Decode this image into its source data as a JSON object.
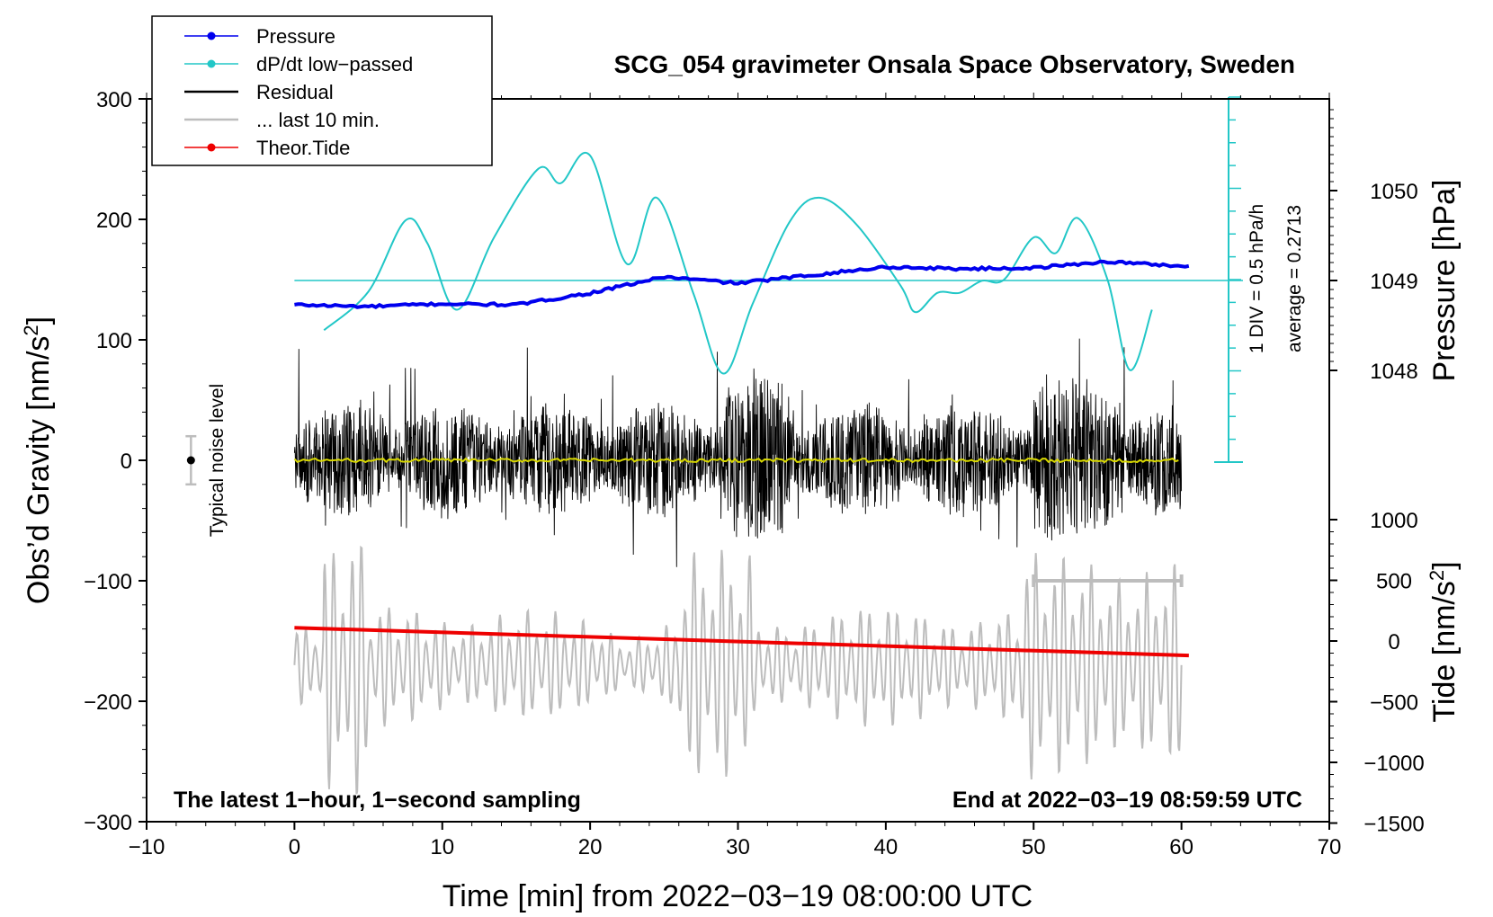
{
  "chart_data": {
    "type": "line",
    "title": "SCG_054 gravimeter Onsala Space Observatory, Sweden",
    "xlabel": "Time [min] from 2022−03−19 08:00:00 UTC",
    "ylabel_left": "Obs’d Gravity [nm/s²]",
    "ylabel_left_base": "Obs’d Gravity [nm/s",
    "ylabel_right_pressure": "Pressure [hPa]",
    "ylabel_right_tide": "Tide [nm/s²]",
    "ylabel_right_tide_base": "Tide [nm/s",
    "sup2": "2",
    "close_bracket": "]",
    "xlim": [
      -10,
      70
    ],
    "ylim_left": [
      -300,
      300
    ],
    "x_ticks": [
      "−10",
      "0",
      "10",
      "20",
      "30",
      "40",
      "50",
      "60",
      "70"
    ],
    "x_tick_values": [
      -10,
      0,
      10,
      20,
      30,
      40,
      50,
      60,
      70
    ],
    "y_ticks_left": [
      "300",
      "200",
      "100",
      "0",
      "−100",
      "−200",
      "−300"
    ],
    "y_tick_values_left": [
      300,
      200,
      100,
      0,
      -100,
      -200,
      -300
    ],
    "pressure_ticks": [
      "1050",
      "1049",
      "1048"
    ],
    "pressure_tick_values": [
      1050,
      1049,
      1048
    ],
    "tide_ticks": [
      "1000",
      "500",
      "0",
      "−500",
      "−1000",
      "−1500"
    ],
    "tide_tick_values": [
      1000,
      500,
      0,
      -500,
      -1000,
      -1500
    ],
    "legend": [
      {
        "label": "Pressure",
        "color": "#0000ee",
        "marker": true
      },
      {
        "label": "dP/dt low−passed",
        "color": "#22c7c7",
        "marker": true
      },
      {
        "label": "Residual",
        "color": "#000000",
        "marker": false
      },
      {
        "label": "... last 10 min.",
        "color": "#bdbdbd",
        "marker": false
      },
      {
        "label": "Theor.Tide",
        "color": "#ee0000",
        "marker": true
      }
    ],
    "annotations": {
      "bottom_left": "The latest 1−hour, 1−second sampling",
      "bottom_right": "End at 2022−03−19 08:59:59 UTC",
      "div_label": "1 DIV = 0.5 hPa/h",
      "average_label": "average = 0.2713",
      "noise_label": "Typical noise level"
    },
    "noise_level_range": [
      -20,
      20
    ],
    "last10_bar_range": [
      50,
      60
    ],
    "series": [
      {
        "name": "Pressure",
        "unit": "hPa",
        "x": [
          0,
          5,
          10,
          15,
          20,
          25,
          30,
          35,
          40,
          45,
          50,
          55,
          60
        ],
        "values": [
          1048.73,
          1048.71,
          1048.74,
          1048.73,
          1048.86,
          1049.04,
          1048.97,
          1049.06,
          1049.15,
          1049.13,
          1049.14,
          1049.21,
          1049.16
        ]
      },
      {
        "name": "dP/dt low−passed",
        "unit": "nm/s² plot scale",
        "x": [
          2,
          5,
          7.5,
          9,
          11,
          13.5,
          16.5,
          18,
          20,
          22.5,
          24.5,
          27,
          29,
          31,
          33.5,
          35.5,
          38,
          41,
          42,
          43.5,
          45,
          46.5,
          48,
          50,
          51.5,
          53,
          55,
          56.5,
          58
        ],
        "values": [
          108,
          140,
          199,
          180,
          125,
          185,
          242,
          230,
          253,
          163,
          218,
          138,
          72,
          130,
          198,
          218,
          196,
          145,
          123,
          139,
          139,
          149,
          150,
          185,
          172,
          201,
          150,
          75,
          125
        ]
      },
      {
        "name": "Residual",
        "unit": "nm/s²",
        "x_range": [
          0,
          60
        ],
        "amplitude_typical": 45,
        "amplitude_max": 105
      },
      {
        "name": "... last 10 min.",
        "unit": "nm/s²",
        "x_range": [
          0,
          60
        ],
        "center": -170,
        "amplitude_max": 125
      },
      {
        "name": "Theor.Tide",
        "unit": "nm/s²",
        "x": [
          0,
          60.5
        ],
        "values": [
          -139,
          -162
        ]
      }
    ]
  }
}
